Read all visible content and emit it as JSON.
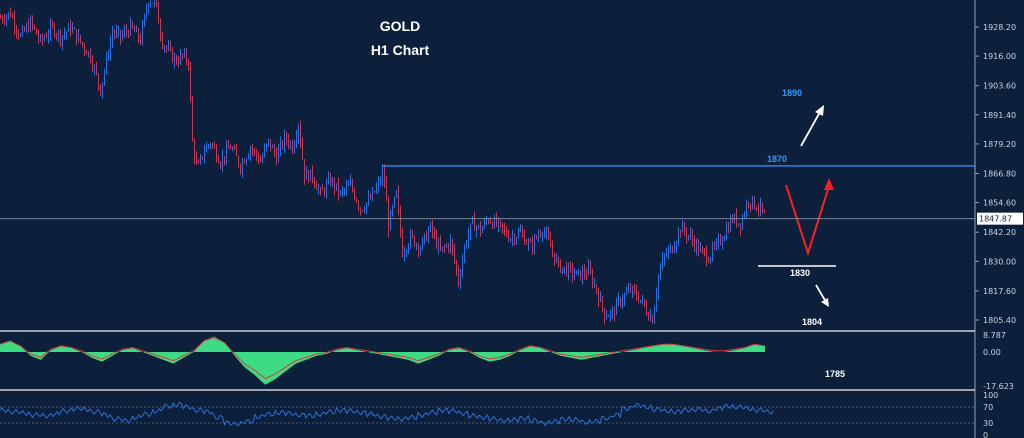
{
  "chart_data": {
    "type": "candlestick",
    "title": "GOLD",
    "subtitle": "H1 Chart",
    "price_axis": {
      "ticks": [
        "1928.20",
        "1916.00",
        "1903.60",
        "1891.40",
        "1879.20",
        "1866.80",
        "1854.60",
        "1842.20",
        "1830.00",
        "1817.60",
        "1805.40"
      ],
      "tick_values": [
        1928.2,
        1916.0,
        1903.6,
        1891.4,
        1879.2,
        1866.8,
        1854.6,
        1842.2,
        1830.0,
        1817.6,
        1805.4
      ],
      "current_price": "1847.87",
      "range": [
        1800,
        1936
      ]
    },
    "price_path": [
      [
        0,
        1932
      ],
      [
        10,
        1934
      ],
      [
        20,
        1924
      ],
      [
        30,
        1930
      ],
      [
        40,
        1922
      ],
      [
        52,
        1928
      ],
      [
        60,
        1924
      ],
      [
        70,
        1928
      ],
      [
        80,
        1922
      ],
      [
        90,
        1916
      ],
      [
        100,
        1902
      ],
      [
        106,
        1914
      ],
      [
        112,
        1926
      ],
      [
        120,
        1924
      ],
      [
        130,
        1928
      ],
      [
        140,
        1923
      ],
      [
        148,
        1940
      ],
      [
        155,
        1938
      ],
      [
        162,
        1922
      ],
      [
        168,
        1918
      ],
      [
        175,
        1914
      ],
      [
        182,
        1916
      ],
      [
        188,
        1914
      ],
      [
        192,
        1880
      ],
      [
        197,
        1868
      ],
      [
        203,
        1876
      ],
      [
        210,
        1880
      ],
      [
        220,
        1872
      ],
      [
        230,
        1878
      ],
      [
        240,
        1870
      ],
      [
        250,
        1878
      ],
      [
        260,
        1872
      ],
      [
        268,
        1880
      ],
      [
        276,
        1874
      ],
      [
        285,
        1882
      ],
      [
        292,
        1878
      ],
      [
        298,
        1888
      ],
      [
        304,
        1866
      ],
      [
        312,
        1866
      ],
      [
        320,
        1858
      ],
      [
        330,
        1864
      ],
      [
        340,
        1858
      ],
      [
        350,
        1862
      ],
      [
        360,
        1852
      ],
      [
        370,
        1856
      ],
      [
        378,
        1862
      ],
      [
        383,
        1868
      ],
      [
        388,
        1845
      ],
      [
        396,
        1858
      ],
      [
        402,
        1834
      ],
      [
        410,
        1840
      ],
      [
        420,
        1836
      ],
      [
        430,
        1844
      ],
      [
        440,
        1834
      ],
      [
        450,
        1838
      ],
      [
        458,
        1822
      ],
      [
        465,
        1838
      ],
      [
        472,
        1846
      ],
      [
        480,
        1843
      ],
      [
        488,
        1848
      ],
      [
        500,
        1844
      ],
      [
        510,
        1840
      ],
      [
        520,
        1842
      ],
      [
        530,
        1836
      ],
      [
        542,
        1844
      ],
      [
        550,
        1836
      ],
      [
        558,
        1828
      ],
      [
        568,
        1826
      ],
      [
        578,
        1824
      ],
      [
        588,
        1826
      ],
      [
        596,
        1818
      ],
      [
        604,
        1808
      ],
      [
        612,
        1808
      ],
      [
        620,
        1814
      ],
      [
        630,
        1818
      ],
      [
        640,
        1814
      ],
      [
        648,
        1808
      ],
      [
        652,
        1806
      ],
      [
        658,
        1824
      ],
      [
        664,
        1832
      ],
      [
        672,
        1836
      ],
      [
        680,
        1844
      ],
      [
        690,
        1840
      ],
      [
        700,
        1834
      ],
      [
        708,
        1832
      ],
      [
        716,
        1836
      ],
      [
        724,
        1842
      ],
      [
        732,
        1848
      ],
      [
        740,
        1846
      ],
      [
        748,
        1856
      ],
      [
        754,
        1854
      ],
      [
        760,
        1852
      ],
      [
        765,
        1848
      ]
    ],
    "levels": [
      {
        "label": "1890",
        "value": 1890,
        "color": "#3399ff"
      },
      {
        "label": "1870",
        "value": 1870,
        "color": "#3399ff",
        "line": true
      },
      {
        "label": "1830",
        "value": 1830,
        "color": "#ffffff",
        "line": true
      },
      {
        "label": "1804",
        "value": 1804,
        "color": "#ffffff"
      },
      {
        "label": "1785",
        "value": 1785,
        "color": "#ffffff"
      }
    ],
    "projection": {
      "bull_path": [
        [
          1847,
          1847
        ],
        [
          1832,
          1832
        ],
        [
          1853,
          1853
        ]
      ],
      "arrow_up_target": "1890",
      "arrow_down_target": "1804",
      "color": "#ff2020"
    },
    "macd_panel": {
      "ticks": [
        "8.787",
        "0.00",
        "-17.623"
      ],
      "tick_values": [
        8.787,
        0,
        -17.623
      ],
      "histogram_color": "#3ddc84",
      "signal_color": "#d23c3c",
      "values": [
        4,
        6,
        3,
        -2,
        -4,
        1,
        3,
        2,
        0,
        -3,
        -5,
        -2,
        1,
        2,
        0,
        -2,
        -4,
        -6,
        -3,
        0,
        6,
        8,
        5,
        -2,
        -8,
        -12,
        -17,
        -14,
        -10,
        -6,
        -4,
        -2,
        -1,
        1,
        2,
        1,
        0,
        -1,
        -2,
        -3,
        -4,
        -6,
        -4,
        -2,
        1,
        2,
        0,
        -3,
        -5,
        -4,
        -2,
        1,
        3,
        2,
        0,
        -2,
        -3,
        -4,
        -3,
        -2,
        -1,
        0,
        1,
        2,
        3,
        4,
        4,
        3,
        2,
        1,
        0,
        0,
        1,
        2,
        4,
        3
      ]
    },
    "rsi_panel": {
      "ticks": [
        "100",
        "70",
        "30",
        "0"
      ],
      "tick_values": [
        100,
        70,
        30,
        0
      ],
      "line_color": "#2f6fd6",
      "values": [
        62,
        58,
        55,
        50,
        48,
        52,
        60,
        66,
        64,
        58,
        50,
        40,
        36,
        44,
        52,
        60,
        72,
        76,
        70,
        62,
        58,
        44,
        30,
        28,
        34,
        46,
        52,
        56,
        54,
        50,
        48,
        52,
        58,
        62,
        60,
        56,
        52,
        46,
        42,
        40,
        44,
        50,
        56,
        62,
        60,
        54,
        48,
        44,
        40,
        36,
        38,
        42,
        36,
        30,
        34,
        40,
        38,
        32,
        34,
        42,
        50,
        66,
        74,
        70,
        64,
        60,
        58,
        62,
        64,
        60,
        66,
        72,
        70,
        66,
        62,
        58
      ]
    }
  }
}
